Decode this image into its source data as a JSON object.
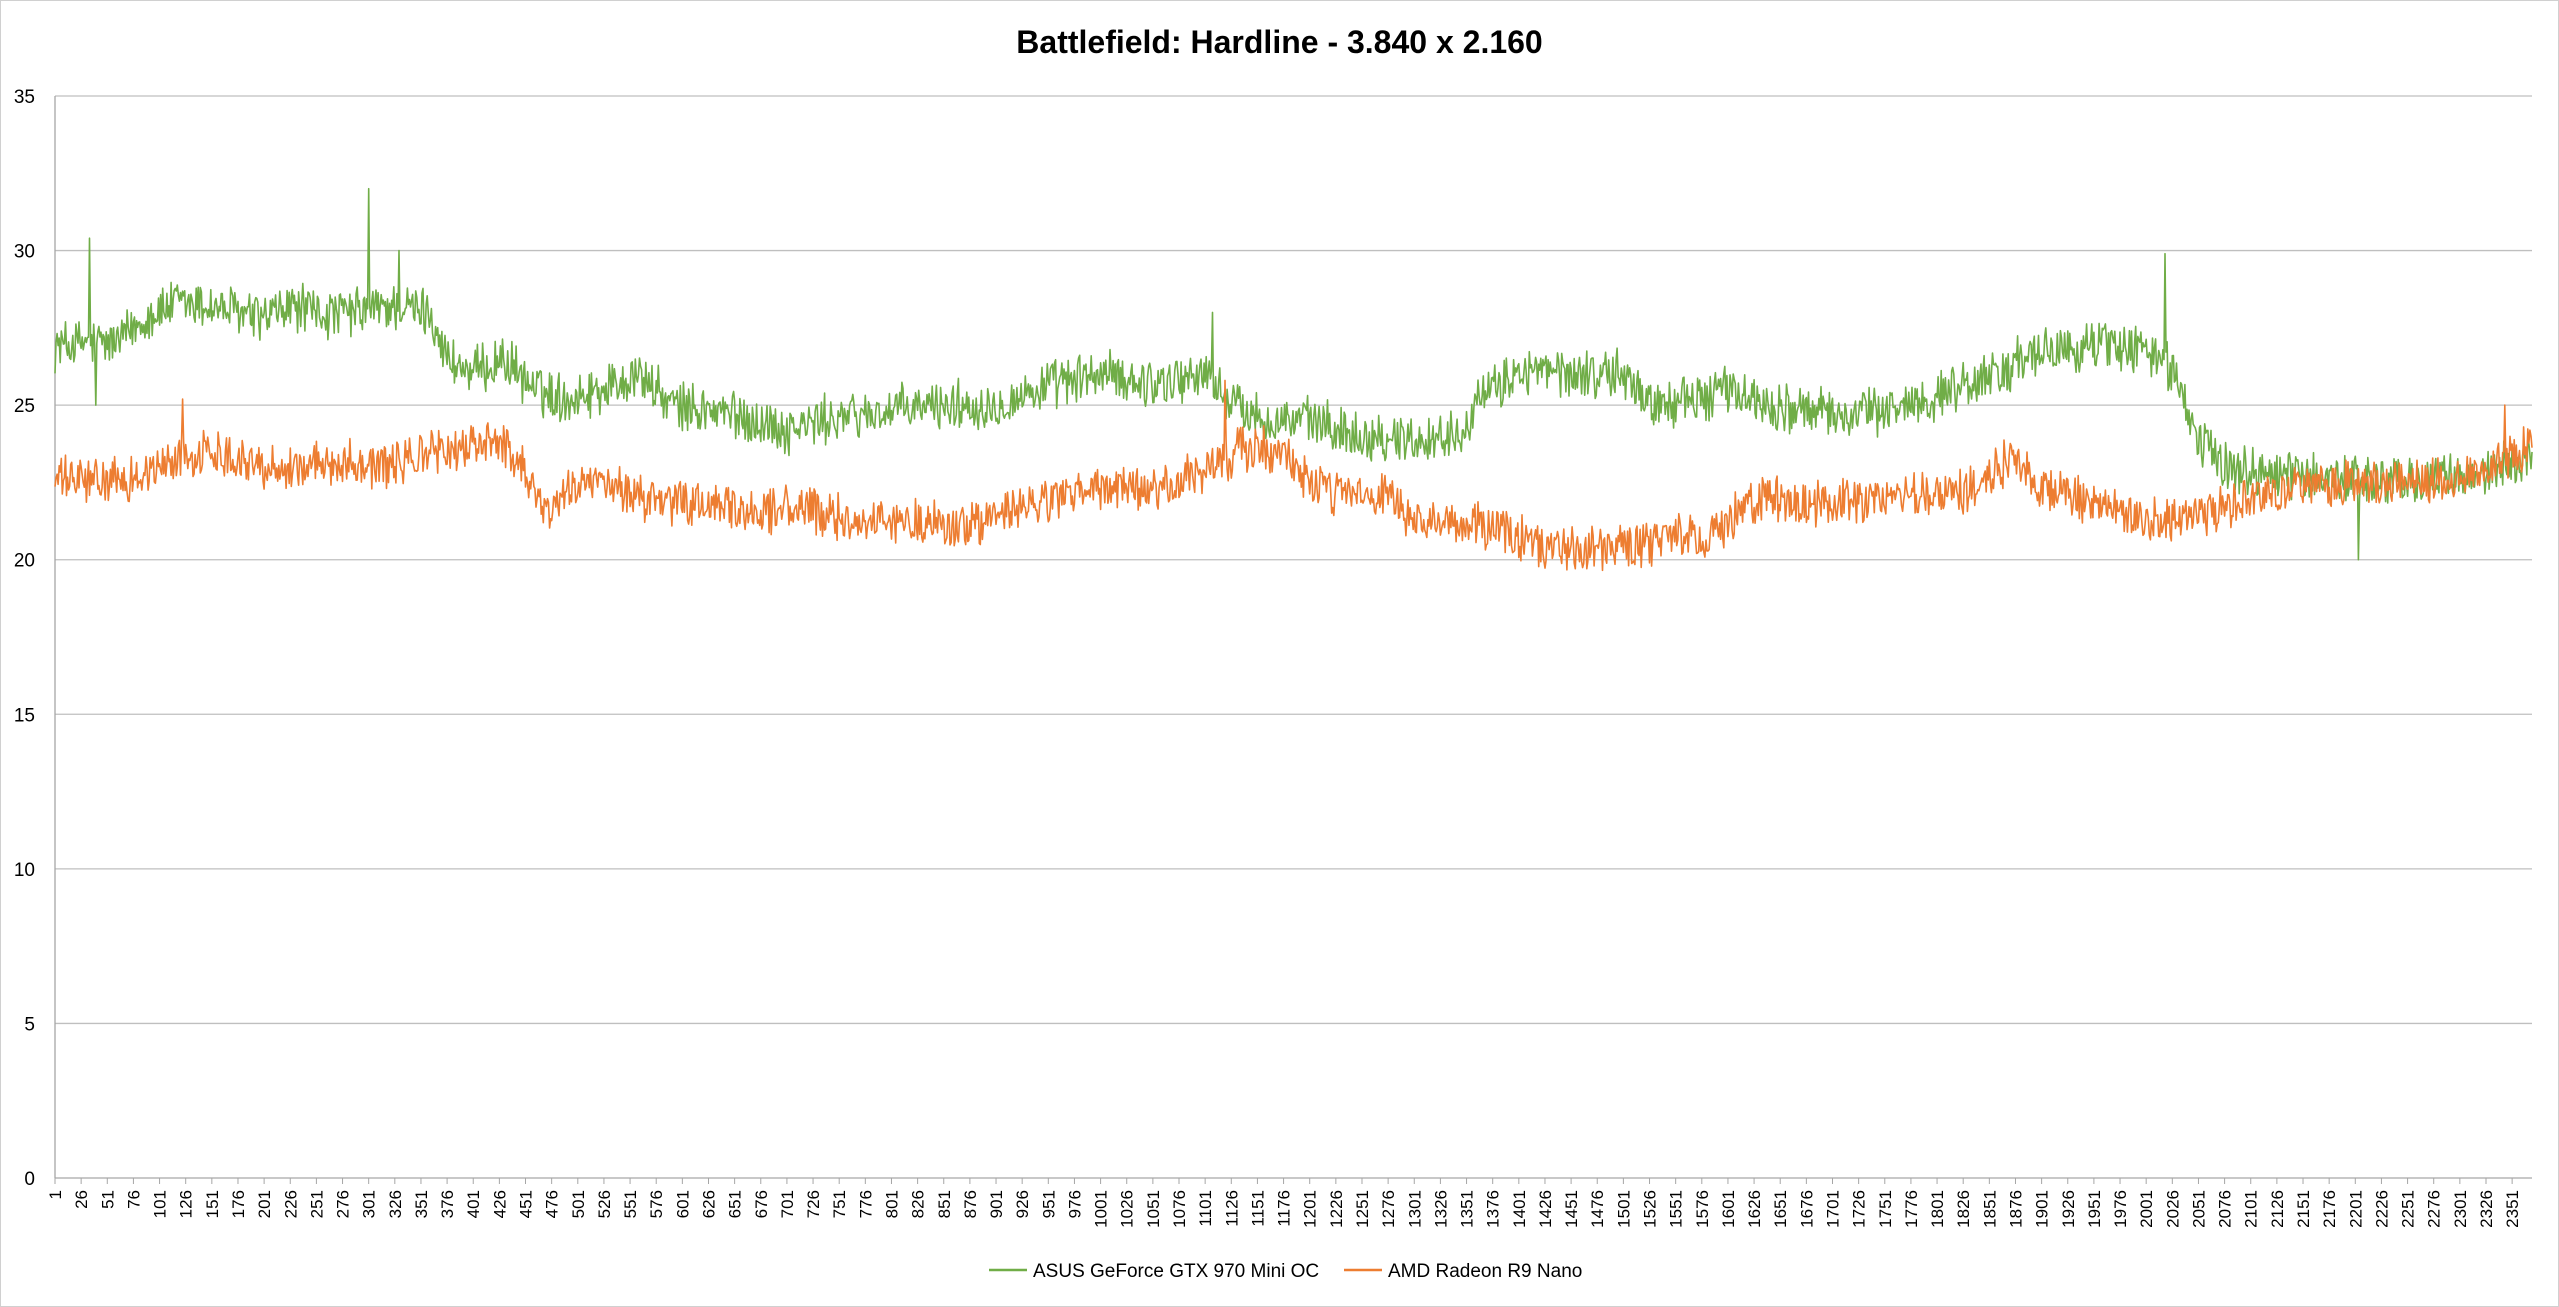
{
  "chart_data": {
    "type": "line",
    "title": "Battlefield: Hardline - 3.840 x 2.160",
    "xlabel": "",
    "ylabel": "",
    "ylim": [
      0,
      35
    ],
    "yticks": [
      0,
      5,
      10,
      15,
      20,
      25,
      30,
      35
    ],
    "x_range": [
      1,
      2370
    ],
    "x_tick_start": 1,
    "x_tick_step": 25,
    "x_tick_last": 2351,
    "grid": "horizontal",
    "legend": "bottom-center",
    "series": [
      {
        "name": "ASUS GeForce GTX 970 Mini OC",
        "color": "#70ad47",
        "noise": 0.7,
        "spikes": [
          [
            34,
            30.4
          ],
          [
            40,
            25.0
          ],
          [
            301,
            32.0
          ],
          [
            330,
            30.0
          ],
          [
            1108,
            28.0
          ],
          [
            2019,
            29.9
          ],
          [
            2204,
            20.0
          ]
        ],
        "keypoints": [
          [
            1,
            26.9
          ],
          [
            30,
            27.0
          ],
          [
            60,
            27.0
          ],
          [
            90,
            27.9
          ],
          [
            120,
            28.3
          ],
          [
            150,
            28.2
          ],
          [
            200,
            27.8
          ],
          [
            230,
            28.2
          ],
          [
            260,
            27.9
          ],
          [
            290,
            28.0
          ],
          [
            320,
            28.2
          ],
          [
            360,
            28.0
          ],
          [
            376,
            26.5
          ],
          [
            400,
            26.0
          ],
          [
            430,
            26.5
          ],
          [
            460,
            25.5
          ],
          [
            490,
            25.2
          ],
          [
            530,
            25.6
          ],
          [
            560,
            26.0
          ],
          [
            590,
            25.0
          ],
          [
            650,
            24.7
          ],
          [
            700,
            24.2
          ],
          [
            750,
            24.6
          ],
          [
            800,
            24.8
          ],
          [
            850,
            25.0
          ],
          [
            900,
            25.0
          ],
          [
            950,
            25.6
          ],
          [
            1000,
            26.0
          ],
          [
            1050,
            25.7
          ],
          [
            1100,
            26.0
          ],
          [
            1130,
            25.0
          ],
          [
            1160,
            24.5
          ],
          [
            1200,
            24.5
          ],
          [
            1250,
            24.0
          ],
          [
            1300,
            23.9
          ],
          [
            1340,
            24.0
          ],
          [
            1360,
            25.0
          ],
          [
            1400,
            26.1
          ],
          [
            1450,
            26.0
          ],
          [
            1500,
            26.0
          ],
          [
            1530,
            25.0
          ],
          [
            1570,
            25.2
          ],
          [
            1600,
            25.5
          ],
          [
            1640,
            25.0
          ],
          [
            1700,
            24.7
          ],
          [
            1750,
            24.8
          ],
          [
            1800,
            25.3
          ],
          [
            1840,
            25.8
          ],
          [
            1880,
            26.4
          ],
          [
            1920,
            26.8
          ],
          [
            1960,
            27.0
          ],
          [
            2000,
            26.8
          ],
          [
            2030,
            26.0
          ],
          [
            2050,
            23.8
          ],
          [
            2080,
            23.0
          ],
          [
            2120,
            22.8
          ],
          [
            2200,
            22.6
          ],
          [
            2260,
            22.5
          ],
          [
            2320,
            22.7
          ],
          [
            2370,
            23.4
          ]
        ]
      },
      {
        "name": "AMD Radeon R9 Nano",
        "color": "#ed7d31",
        "noise": 0.65,
        "spikes": [
          [
            123,
            25.2
          ],
          [
            1120,
            25.8
          ],
          [
            2344,
            25.0
          ]
        ],
        "keypoints": [
          [
            1,
            22.6
          ],
          [
            60,
            22.5
          ],
          [
            90,
            22.8
          ],
          [
            120,
            23.3
          ],
          [
            160,
            23.5
          ],
          [
            200,
            23.0
          ],
          [
            240,
            23.0
          ],
          [
            280,
            23.2
          ],
          [
            320,
            23.0
          ],
          [
            360,
            23.5
          ],
          [
            390,
            23.5
          ],
          [
            420,
            24.0
          ],
          [
            450,
            23.0
          ],
          [
            470,
            21.5
          ],
          [
            500,
            22.5
          ],
          [
            540,
            22.3
          ],
          [
            580,
            21.8
          ],
          [
            620,
            21.8
          ],
          [
            660,
            21.5
          ],
          [
            700,
            21.7
          ],
          [
            760,
            21.3
          ],
          [
            820,
            21.2
          ],
          [
            880,
            21.1
          ],
          [
            920,
            21.6
          ],
          [
            960,
            22.0
          ],
          [
            1000,
            22.3
          ],
          [
            1050,
            22.2
          ],
          [
            1100,
            22.8
          ],
          [
            1130,
            23.5
          ],
          [
            1170,
            23.6
          ],
          [
            1200,
            22.5
          ],
          [
            1240,
            22.0
          ],
          [
            1280,
            22.0
          ],
          [
            1300,
            21.0
          ],
          [
            1340,
            21.2
          ],
          [
            1380,
            21.0
          ],
          [
            1420,
            20.4
          ],
          [
            1460,
            20.4
          ],
          [
            1500,
            20.4
          ],
          [
            1540,
            20.6
          ],
          [
            1580,
            20.8
          ],
          [
            1610,
            21.5
          ],
          [
            1640,
            22.0
          ],
          [
            1680,
            21.8
          ],
          [
            1720,
            21.9
          ],
          [
            1760,
            22.0
          ],
          [
            1800,
            22.1
          ],
          [
            1840,
            22.4
          ],
          [
            1870,
            23.3
          ],
          [
            1900,
            22.5
          ],
          [
            1940,
            21.9
          ],
          [
            1980,
            21.4
          ],
          [
            2020,
            21.2
          ],
          [
            2060,
            21.5
          ],
          [
            2100,
            22.0
          ],
          [
            2140,
            22.3
          ],
          [
            2200,
            22.5
          ],
          [
            2260,
            22.5
          ],
          [
            2320,
            22.8
          ],
          [
            2370,
            23.8
          ]
        ]
      }
    ]
  }
}
